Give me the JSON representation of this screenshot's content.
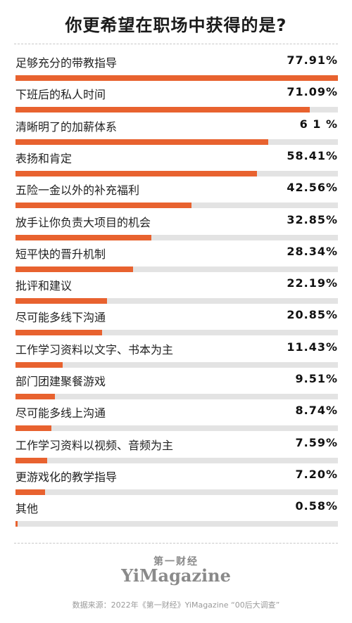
{
  "chart_data": {
    "type": "bar",
    "title": "你更希望在职场中获得的是?",
    "categories": [
      "足够充分的带教指导",
      "下班后的私人时间",
      "清晰明了的加薪体系",
      "表扬和肯定",
      "五险一金以外的补充福利",
      "放手让你负责大项目的机会",
      "短平快的晋升机制",
      "批评和建议",
      "尽可能多线下沟通",
      "工作学习资料以文字、书本为主",
      "部门团建聚餐游戏",
      "尽可能多线上沟通",
      "工作学习资料以视频、音频为主",
      "更游戏化的教学指导",
      "其他"
    ],
    "values": [
      77.91,
      71.09,
      61,
      58.41,
      42.56,
      32.85,
      28.34,
      22.19,
      20.85,
      11.43,
      9.51,
      8.74,
      7.59,
      7.2,
      0.58
    ],
    "value_labels": [
      "77.91%",
      "71.09%",
      "6 1 %",
      "58.41%",
      "42.56%",
      "32.85%",
      "28.34%",
      "22.19%",
      "20.85%",
      "11.43%",
      "9.51%",
      "8.74%",
      "7.59%",
      "7.20%",
      "0.58%"
    ],
    "xlim": [
      0,
      77.91
    ],
    "bar_color": "#e8622f",
    "track_color": "#e3e3e3"
  },
  "footer": {
    "logo_cn": "第一财经",
    "logo_en": "YiMagazine",
    "source": "数据来源：2022年《第一财经》YiMagazine “00后大调查”"
  }
}
